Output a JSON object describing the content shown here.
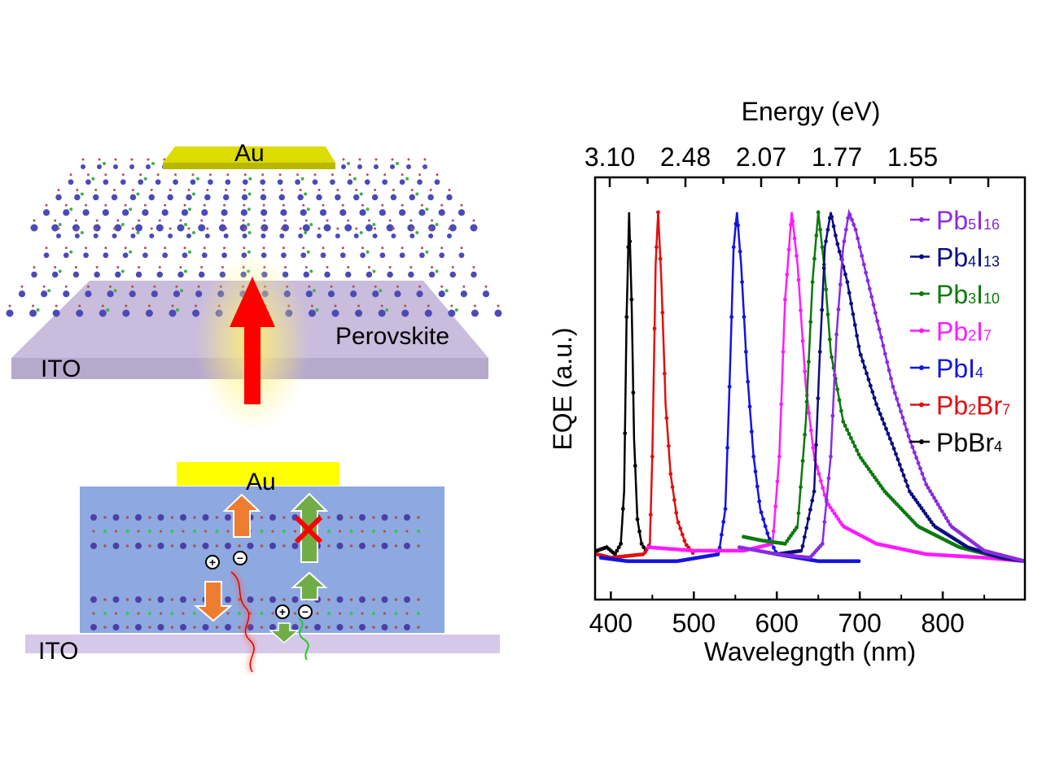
{
  "schematic": {
    "top": {
      "electrode_label": "Au",
      "substrate_label": "ITO",
      "film_label": "Perovskite"
    },
    "bottom": {
      "electrode_label": "Au",
      "substrate_label": "ITO",
      "hole_symbol": "+",
      "electron_symbol": "−"
    },
    "colors": {
      "gold": "#ffff00",
      "ito": "#d6c8e8",
      "perovskite": "#8ea9e0",
      "arrow_orange": "#ed7d31",
      "arrow_green": "#70ad47",
      "light_arrow": "#ff0000",
      "block_cross": "#ff0000"
    }
  },
  "chart_data": {
    "type": "line",
    "xlabel": "Wavelegngth (nm)",
    "ylabel": "EQE (a.u.)",
    "top_xlabel": "Energy (eV)",
    "xlim": [
      381,
      899
    ],
    "ylim": [
      -0.11,
      1.1
    ],
    "x_ticks": [
      400,
      500,
      600,
      700,
      800
    ],
    "x_tick_labels": [
      "400",
      "500",
      "600",
      "700",
      "800"
    ],
    "top_tick_labels": [
      "3.10",
      "2.48",
      "2.07",
      "1.77",
      "1.55"
    ],
    "y_ticks_shown": false,
    "legend_placement": "top-right",
    "series": [
      {
        "name": "Pb5I16",
        "sub": [
          "Pb",
          "5",
          "I",
          "16"
        ],
        "color": "#8a2be2",
        "points": [
          [
            555,
            0.04
          ],
          [
            600,
            0.02
          ],
          [
            640,
            0.01
          ],
          [
            655,
            0.05
          ],
          [
            665,
            0.3
          ],
          [
            672,
            0.65
          ],
          [
            680,
            0.9
          ],
          [
            687,
            1.0
          ],
          [
            695,
            0.95
          ],
          [
            705,
            0.85
          ],
          [
            720,
            0.7
          ],
          [
            740,
            0.5
          ],
          [
            760,
            0.35
          ],
          [
            780,
            0.22
          ],
          [
            810,
            0.1
          ],
          [
            850,
            0.03
          ],
          [
            899,
            0.0
          ]
        ]
      },
      {
        "name": "Pb4I13",
        "sub": [
          "Pb",
          "4",
          "I",
          "13"
        ],
        "color": "#0c0c80",
        "points": [
          [
            600,
            0.02
          ],
          [
            630,
            0.03
          ],
          [
            645,
            0.2
          ],
          [
            652,
            0.6
          ],
          [
            658,
            0.9
          ],
          [
            665,
            1.0
          ],
          [
            672,
            0.92
          ],
          [
            685,
            0.8
          ],
          [
            700,
            0.6
          ],
          [
            720,
            0.45
          ],
          [
            740,
            0.33
          ],
          [
            760,
            0.2
          ],
          [
            790,
            0.1
          ],
          [
            830,
            0.04
          ],
          [
            870,
            0.01
          ],
          [
            899,
            0.0
          ]
        ]
      },
      {
        "name": "Pb3I10",
        "sub": [
          "Pb",
          "3",
          "I",
          "10"
        ],
        "color": "#0a7a0a",
        "points": [
          [
            560,
            0.07
          ],
          [
            580,
            0.06
          ],
          [
            610,
            0.05
          ],
          [
            625,
            0.1
          ],
          [
            635,
            0.4
          ],
          [
            643,
            0.8
          ],
          [
            650,
            1.0
          ],
          [
            657,
            0.85
          ],
          [
            665,
            0.6
          ],
          [
            680,
            0.4
          ],
          [
            700,
            0.3
          ],
          [
            730,
            0.2
          ],
          [
            770,
            0.1
          ],
          [
            820,
            0.04
          ],
          [
            870,
            0.01
          ],
          [
            899,
            0.0
          ]
        ]
      },
      {
        "name": "Pb2I7",
        "sub": [
          "Pb",
          "2",
          "I",
          "7"
        ],
        "color": "#ff1aff",
        "points": [
          [
            445,
            0.04
          ],
          [
            500,
            0.03
          ],
          [
            560,
            0.03
          ],
          [
            595,
            0.05
          ],
          [
            603,
            0.3
          ],
          [
            610,
            0.75
          ],
          [
            618,
            1.0
          ],
          [
            625,
            0.85
          ],
          [
            635,
            0.5
          ],
          [
            645,
            0.3
          ],
          [
            660,
            0.17
          ],
          [
            680,
            0.1
          ],
          [
            720,
            0.05
          ],
          [
            780,
            0.02
          ],
          [
            850,
            0.01
          ],
          [
            899,
            0.0
          ]
        ]
      },
      {
        "name": "PbI4",
        "sub": [
          "PbI",
          "4",
          "",
          ""
        ],
        "color": "#1414e0",
        "points": [
          [
            388,
            0.01
          ],
          [
            420,
            0.0
          ],
          [
            480,
            0.0
          ],
          [
            530,
            0.02
          ],
          [
            538,
            0.15
          ],
          [
            543,
            0.5
          ],
          [
            548,
            0.9
          ],
          [
            552,
            1.0
          ],
          [
            557,
            0.85
          ],
          [
            564,
            0.55
          ],
          [
            572,
            0.3
          ],
          [
            580,
            0.15
          ],
          [
            590,
            0.07
          ],
          [
            600,
            0.02
          ],
          [
            650,
            0.0
          ],
          [
            700,
            0.0
          ]
        ]
      },
      {
        "name": "Pb2Br7",
        "sub": [
          "Pb",
          "2",
          "Br",
          "7"
        ],
        "color": "#e01010",
        "points": [
          [
            383,
            0.02
          ],
          [
            400,
            0.01
          ],
          [
            440,
            0.02
          ],
          [
            447,
            0.05
          ],
          [
            450,
            0.3
          ],
          [
            454,
            0.85
          ],
          [
            457,
            1.0
          ],
          [
            461,
            0.8
          ],
          [
            466,
            0.45
          ],
          [
            472,
            0.25
          ],
          [
            480,
            0.12
          ],
          [
            490,
            0.05
          ],
          [
            500,
            0.02
          ]
        ]
      },
      {
        "name": "PbBr4",
        "sub": [
          "PbBr",
          "4",
          "",
          ""
        ],
        "color": "#000000",
        "points": [
          [
            383,
            0.03
          ],
          [
            395,
            0.04
          ],
          [
            405,
            0.02
          ],
          [
            412,
            0.05
          ],
          [
            416,
            0.2
          ],
          [
            419,
            0.7
          ],
          [
            422,
            1.0
          ],
          [
            425,
            0.75
          ],
          [
            428,
            0.35
          ],
          [
            432,
            0.12
          ],
          [
            437,
            0.05
          ],
          [
            442,
            0.03
          ]
        ]
      }
    ]
  }
}
